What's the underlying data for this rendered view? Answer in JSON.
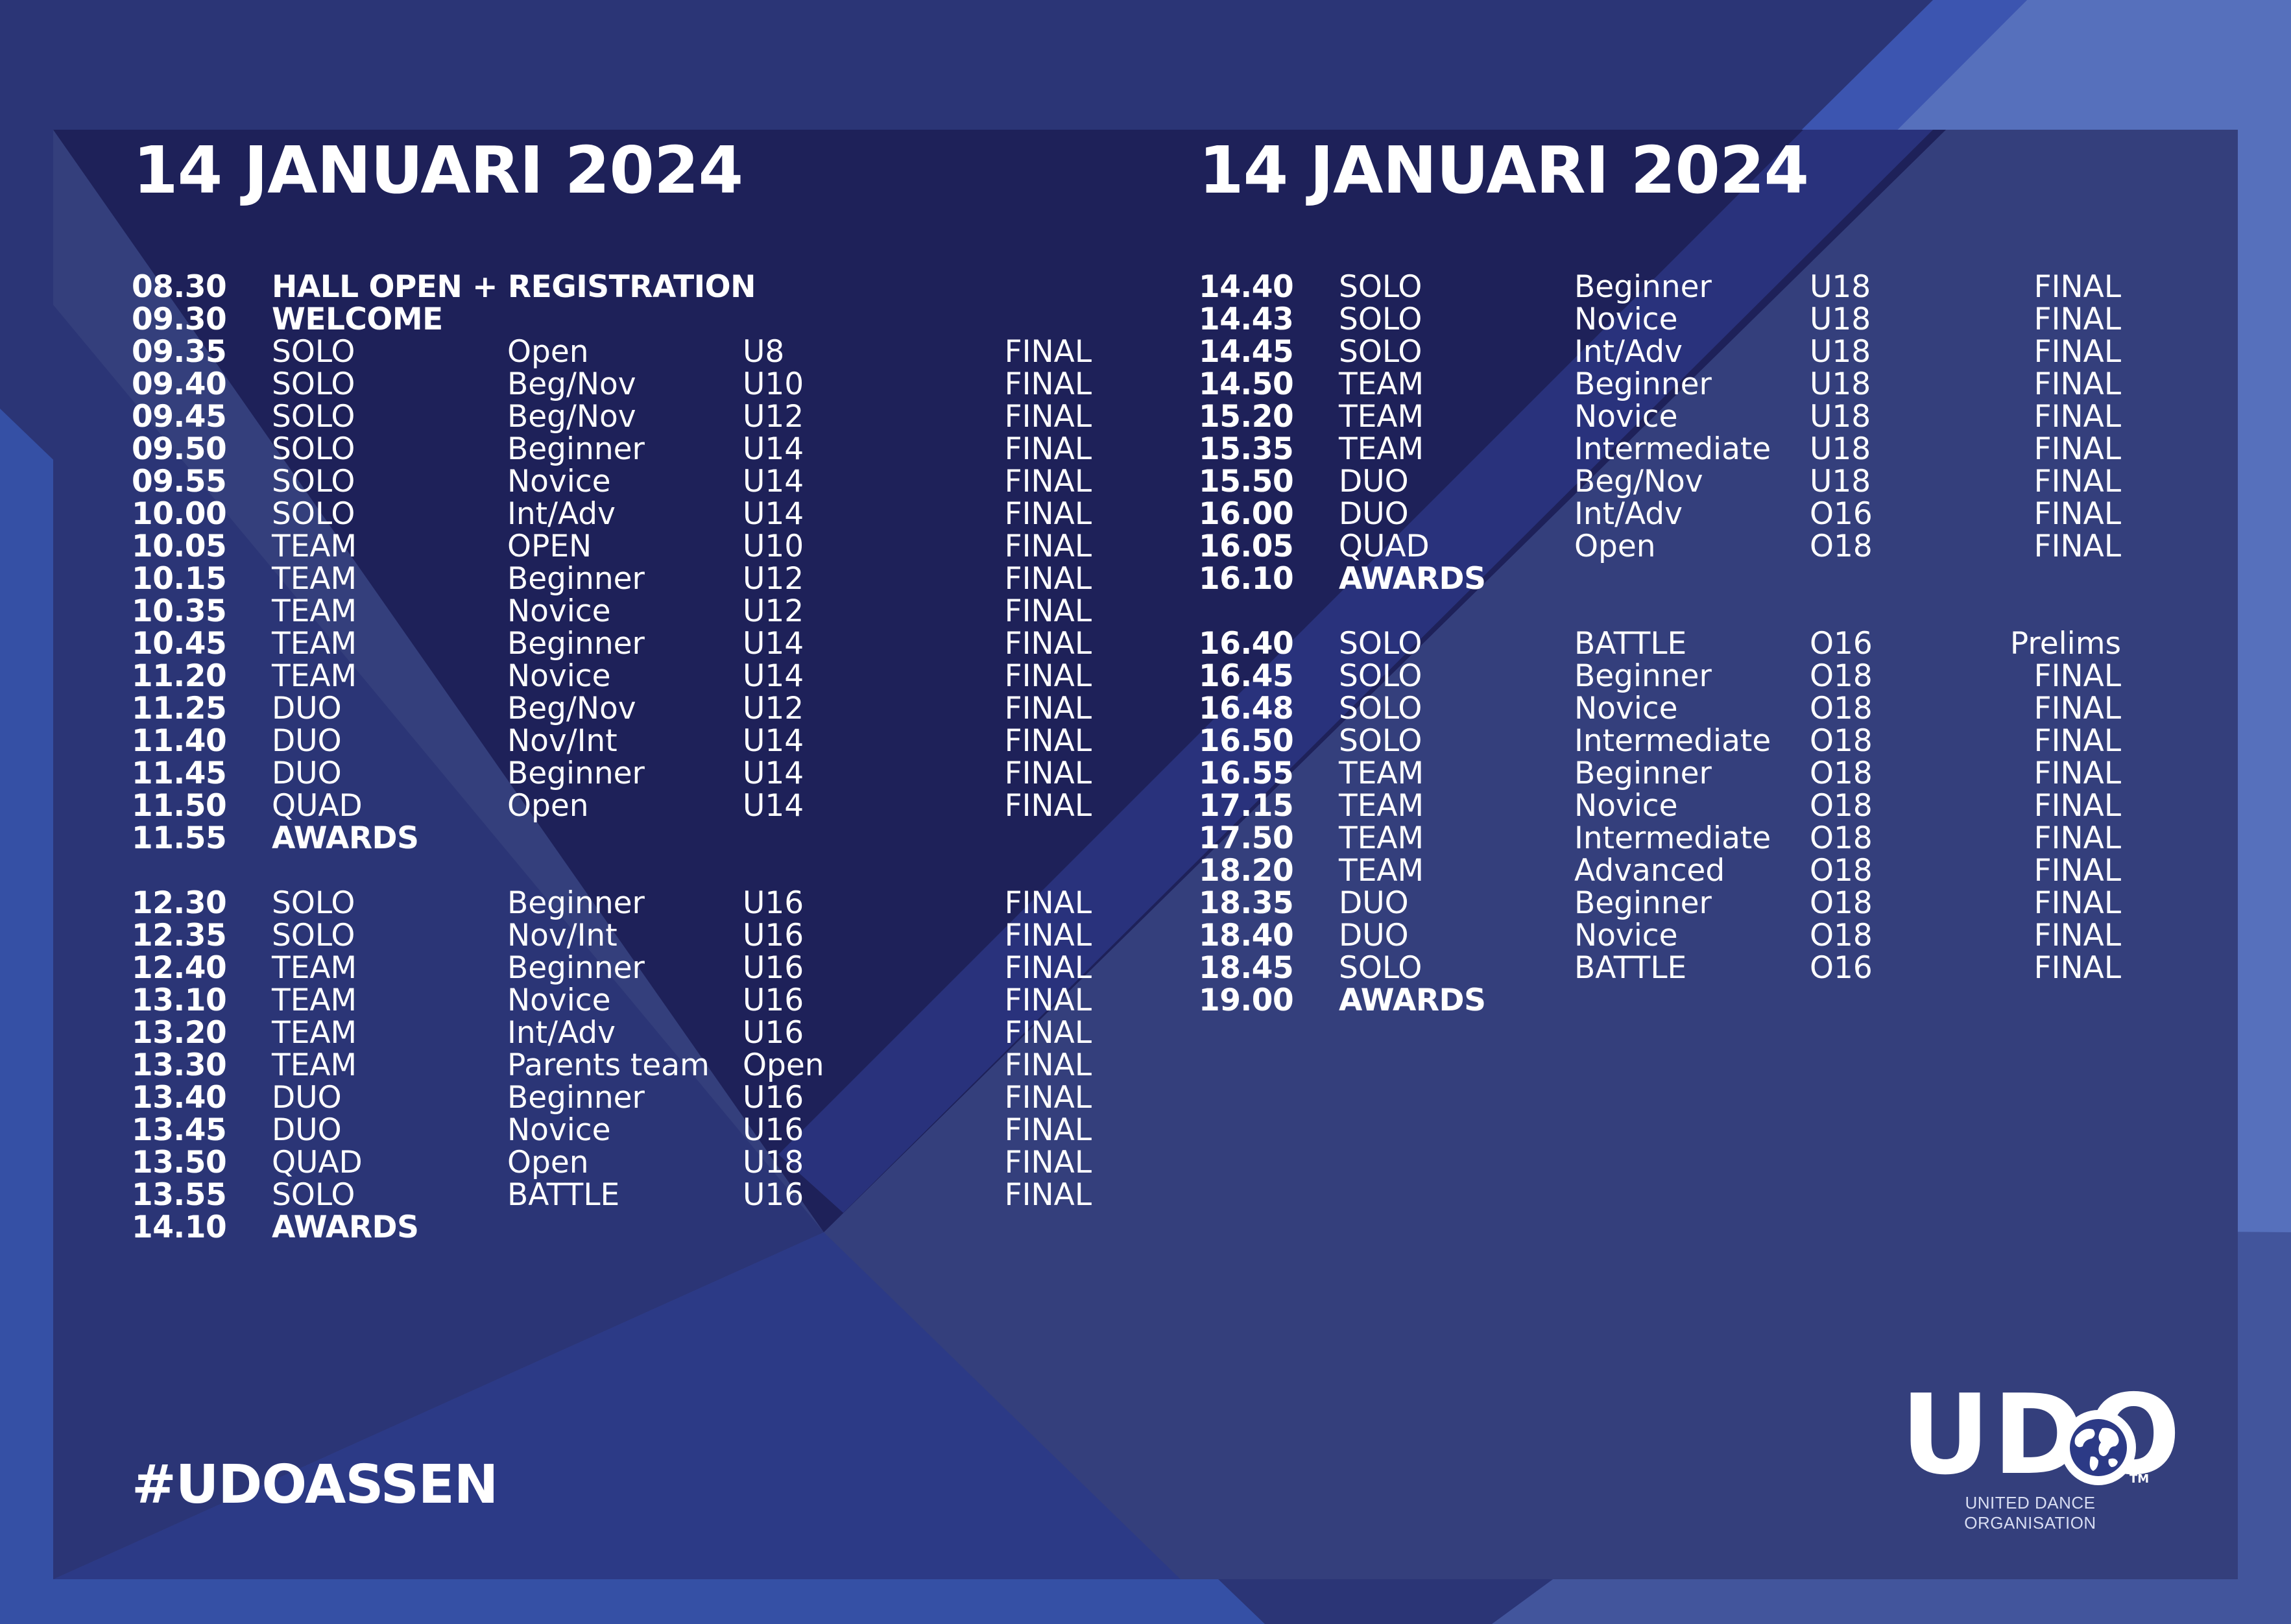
{
  "colors": {
    "background": "#2b3576",
    "panel_dark": "#1e2159",
    "panel_light": "#343f7c",
    "accent_blue": "#3550a5",
    "light_band": "#5670bc",
    "text": "#ffffff"
  },
  "left": {
    "title": "14 JANUARI 2024",
    "rows": [
      {
        "time": "08.30",
        "event": "HALL OPEN + REGISTRATION",
        "level": "",
        "age": "",
        "round": "",
        "bold": true
      },
      {
        "time": "09.30",
        "event": "WELCOME",
        "level": "",
        "age": "",
        "round": "",
        "bold": true
      },
      {
        "time": "09.35",
        "event": "SOLO",
        "level": "Open",
        "age": "U8",
        "round": "FINAL"
      },
      {
        "time": "09.40",
        "event": "SOLO",
        "level": "Beg/Nov",
        "age": "U10",
        "round": "FINAL"
      },
      {
        "time": "09.45",
        "event": "SOLO",
        "level": "Beg/Nov",
        "age": "U12",
        "round": "FINAL"
      },
      {
        "time": "09.50",
        "event": "SOLO",
        "level": "Beginner",
        "age": "U14",
        "round": "FINAL"
      },
      {
        "time": "09.55",
        "event": "SOLO",
        "level": "Novice",
        "age": "U14",
        "round": "FINAL"
      },
      {
        "time": "10.00",
        "event": "SOLO",
        "level": "Int/Adv",
        "age": "U14",
        "round": "FINAL"
      },
      {
        "time": "10.05",
        "event": "TEAM",
        "level": "OPEN",
        "age": "U10",
        "round": "FINAL"
      },
      {
        "time": "10.15",
        "event": "TEAM",
        "level": "Beginner",
        "age": "U12",
        "round": "FINAL"
      },
      {
        "time": "10.35",
        "event": "TEAM",
        "level": "Novice",
        "age": "U12",
        "round": "FINAL"
      },
      {
        "time": "10.45",
        "event": "TEAM",
        "level": "Beginner",
        "age": "U14",
        "round": "FINAL"
      },
      {
        "time": "11.20",
        "event": "TEAM",
        "level": "Novice",
        "age": "U14",
        "round": "FINAL"
      },
      {
        "time": "11.25",
        "event": "DUO",
        "level": "Beg/Nov",
        "age": "U12",
        "round": "FINAL"
      },
      {
        "time": "11.40",
        "event": "DUO",
        "level": "Nov/Int",
        "age": "U14",
        "round": "FINAL"
      },
      {
        "time": "11.45",
        "event": "DUO",
        "level": "Beginner",
        "age": "U14",
        "round": "FINAL"
      },
      {
        "time": "11.50",
        "event": "QUAD",
        "level": "Open",
        "age": "U14",
        "round": "FINAL"
      },
      {
        "time": "11.55",
        "event": "AWARDS",
        "level": "",
        "age": "",
        "round": "",
        "bold": true
      },
      {
        "spacer": true
      },
      {
        "time": "12.30",
        "event": "SOLO",
        "level": "Beginner",
        "age": "U16",
        "round": "FINAL"
      },
      {
        "time": "12.35",
        "event": "SOLO",
        "level": "Nov/Int",
        "age": "U16",
        "round": "FINAL"
      },
      {
        "time": "12.40",
        "event": "TEAM",
        "level": "Beginner",
        "age": "U16",
        "round": "FINAL"
      },
      {
        "time": "13.10",
        "event": "TEAM",
        "level": "Novice",
        "age": "U16",
        "round": "FINAL"
      },
      {
        "time": "13.20",
        "event": "TEAM",
        "level": "Int/Adv",
        "age": "U16",
        "round": "FINAL"
      },
      {
        "time": "13.30",
        "event": "TEAM",
        "level": "Parents team",
        "age": "Open",
        "round": "FINAL"
      },
      {
        "time": "13.40",
        "event": "DUO",
        "level": "Beginner",
        "age": "U16",
        "round": "FINAL"
      },
      {
        "time": "13.45",
        "event": "DUO",
        "level": "Novice",
        "age": "U16",
        "round": "FINAL"
      },
      {
        "time": "13.50",
        "event": "QUAD",
        "level": "Open",
        "age": "U18",
        "round": "FINAL"
      },
      {
        "time": "13.55",
        "event": "SOLO",
        "level": "BATTLE",
        "age": "U16",
        "round": "FINAL"
      },
      {
        "time": "14.10",
        "event": "AWARDS",
        "level": "",
        "age": "",
        "round": "",
        "bold": true
      }
    ]
  },
  "right": {
    "title": "14 JANUARI 2024",
    "rows": [
      {
        "time": "14.40",
        "event": "SOLO",
        "level": "Beginner",
        "age": "U18",
        "round": "FINAL"
      },
      {
        "time": "14.43",
        "event": "SOLO",
        "level": "Novice",
        "age": "U18",
        "round": "FINAL"
      },
      {
        "time": "14.45",
        "event": "SOLO",
        "level": "Int/Adv",
        "age": "U18",
        "round": "FINAL"
      },
      {
        "time": "14.50",
        "event": "TEAM",
        "level": "Beginner",
        "age": "U18",
        "round": "FINAL"
      },
      {
        "time": "15.20",
        "event": "TEAM",
        "level": "Novice",
        "age": "U18",
        "round": "FINAL"
      },
      {
        "time": "15.35",
        "event": "TEAM",
        "level": "Intermediate",
        "age": "U18",
        "round": "FINAL"
      },
      {
        "time": "15.50",
        "event": "DUO",
        "level": "Beg/Nov",
        "age": "U18",
        "round": "FINAL"
      },
      {
        "time": "16.00",
        "event": "DUO",
        "level": "Int/Adv",
        "age": "O16",
        "round": "FINAL"
      },
      {
        "time": "16.05",
        "event": "QUAD",
        "level": "Open",
        "age": "O18",
        "round": "FINAL"
      },
      {
        "time": "16.10",
        "event": "AWARDS",
        "level": "",
        "age": "",
        "round": "",
        "bold": true
      },
      {
        "spacer": true
      },
      {
        "time": "16.40",
        "event": "SOLO",
        "level": "BATTLE",
        "age": "O16",
        "round": "Prelims"
      },
      {
        "time": "16.45",
        "event": "SOLO",
        "level": "Beginner",
        "age": "O18",
        "round": "FINAL"
      },
      {
        "time": "16.48",
        "event": "SOLO",
        "level": "Novice",
        "age": "O18",
        "round": "FINAL"
      },
      {
        "time": "16.50",
        "event": "SOLO",
        "level": "Intermediate",
        "age": "O18",
        "round": "FINAL"
      },
      {
        "time": "16.55",
        "event": "TEAM",
        "level": "Beginner",
        "age": "O18",
        "round": "FINAL"
      },
      {
        "time": "17.15",
        "event": "TEAM",
        "level": "Novice",
        "age": "O18",
        "round": "FINAL"
      },
      {
        "time": "17.50",
        "event": "TEAM",
        "level": "Intermediate",
        "age": "O18",
        "round": "FINAL"
      },
      {
        "time": "18.20",
        "event": "TEAM",
        "level": "Advanced",
        "age": "O18",
        "round": "FINAL"
      },
      {
        "time": "18.35",
        "event": "DUO",
        "level": "Beginner",
        "age": "O18",
        "round": "FINAL"
      },
      {
        "time": "18.40",
        "event": "DUO",
        "level": "Novice",
        "age": "O18",
        "round": "FINAL"
      },
      {
        "time": "18.45",
        "event": "SOLO",
        "level": "BATTLE",
        "age": "O16",
        "round": "FINAL"
      },
      {
        "time": "19.00",
        "event": "AWARDS",
        "level": "",
        "age": "",
        "round": "",
        "bold": true
      }
    ]
  },
  "hashtag": "#UDOASSEN",
  "logo": {
    "letters": "UDO",
    "trademark": "TM",
    "tagline": "UNITED DANCE ORGANISATION",
    "icon": "globe-icon"
  }
}
